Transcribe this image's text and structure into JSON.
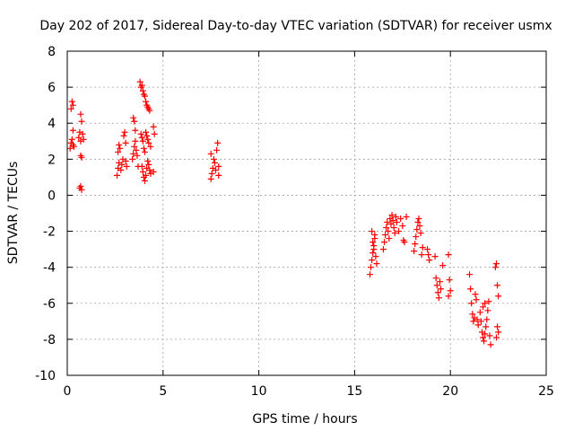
{
  "chart_data": {
    "type": "scatter",
    "title": "Day 202 of 2017, Sidereal Day-to-day VTEC variation (SDTVAR) for receiver usmx",
    "xlabel": "GPS time / hours",
    "ylabel": "SDTVAR / TECUs",
    "xlim": [
      0,
      25
    ],
    "ylim": [
      -10,
      8
    ],
    "x_ticks": [
      0,
      5,
      10,
      15,
      20,
      25
    ],
    "y_ticks": [
      -10,
      -8,
      -6,
      -4,
      -2,
      0,
      2,
      4,
      6,
      8
    ],
    "x_tick_labels": [
      "0",
      "5",
      "10",
      "15",
      "20",
      "25"
    ],
    "y_tick_labels": [
      "-10",
      "-8",
      "-6",
      "-4",
      "-2",
      "0",
      "2",
      "4",
      "6",
      "8"
    ],
    "grid": true,
    "marker": "+",
    "marker_color": "#ff0000",
    "series": [
      {
        "name": "SDTVAR",
        "points": [
          [
            0.15,
            2.6
          ],
          [
            0.2,
            2.9
          ],
          [
            0.25,
            3.1
          ],
          [
            0.3,
            2.8
          ],
          [
            0.25,
            5.2
          ],
          [
            0.3,
            5.0
          ],
          [
            0.2,
            4.8
          ],
          [
            0.3,
            3.6
          ],
          [
            0.35,
            2.7
          ],
          [
            0.6,
            3.2
          ],
          [
            0.65,
            3.5
          ],
          [
            0.7,
            3.0
          ],
          [
            0.75,
            4.1
          ],
          [
            0.7,
            4.5
          ],
          [
            0.8,
            3.4
          ],
          [
            0.85,
            3.1
          ],
          [
            0.7,
            2.2
          ],
          [
            0.75,
            2.1
          ],
          [
            0.65,
            0.4
          ],
          [
            0.7,
            0.5
          ],
          [
            0.75,
            0.3
          ],
          [
            2.6,
            1.1
          ],
          [
            2.65,
            1.5
          ],
          [
            2.7,
            1.8
          ],
          [
            2.65,
            2.4
          ],
          [
            2.7,
            2.8
          ],
          [
            2.75,
            2.6
          ],
          [
            2.8,
            1.4
          ],
          [
            2.85,
            1.7
          ],
          [
            2.9,
            2.0
          ],
          [
            2.95,
            3.3
          ],
          [
            3.0,
            3.5
          ],
          [
            3.05,
            2.9
          ],
          [
            3.1,
            1.6
          ],
          [
            3.05,
            1.9
          ],
          [
            3.4,
            2.0
          ],
          [
            3.45,
            2.3
          ],
          [
            3.5,
            2.7
          ],
          [
            3.55,
            3.0
          ],
          [
            3.45,
            4.3
          ],
          [
            3.5,
            4.1
          ],
          [
            3.55,
            3.6
          ],
          [
            3.6,
            2.5
          ],
          [
            3.65,
            2.2
          ],
          [
            3.7,
            1.6
          ],
          [
            3.8,
            6.3
          ],
          [
            3.85,
            6.0
          ],
          [
            3.9,
            6.1
          ],
          [
            3.95,
            5.8
          ],
          [
            4.0,
            5.6
          ],
          [
            4.05,
            5.5
          ],
          [
            4.1,
            5.2
          ],
          [
            4.15,
            5.0
          ],
          [
            4.2,
            4.9
          ],
          [
            4.25,
            4.8
          ],
          [
            4.3,
            4.7
          ],
          [
            3.85,
            3.4
          ],
          [
            3.9,
            3.2
          ],
          [
            3.95,
            3.0
          ],
          [
            4.0,
            2.6
          ],
          [
            4.05,
            2.4
          ],
          [
            4.1,
            3.5
          ],
          [
            4.15,
            3.3
          ],
          [
            4.2,
            3.1
          ],
          [
            4.25,
            2.9
          ],
          [
            4.35,
            2.7
          ],
          [
            4.5,
            3.8
          ],
          [
            4.55,
            3.4
          ],
          [
            3.9,
            1.6
          ],
          [
            3.95,
            1.3
          ],
          [
            4.0,
            1.0
          ],
          [
            4.05,
            0.8
          ],
          [
            4.1,
            1.1
          ],
          [
            4.15,
            1.5
          ],
          [
            4.2,
            1.9
          ],
          [
            4.25,
            1.7
          ],
          [
            4.3,
            1.4
          ],
          [
            4.35,
            1.2
          ],
          [
            4.5,
            1.3
          ],
          [
            7.5,
            0.9
          ],
          [
            7.55,
            1.2
          ],
          [
            7.6,
            1.5
          ],
          [
            7.65,
            2.0
          ],
          [
            7.5,
            2.3
          ],
          [
            7.7,
            1.8
          ],
          [
            7.75,
            1.4
          ],
          [
            7.8,
            2.5
          ],
          [
            7.85,
            2.9
          ],
          [
            7.9,
            1.1
          ],
          [
            7.9,
            1.6
          ],
          [
            15.8,
            -4.4
          ],
          [
            15.85,
            -4.0
          ],
          [
            15.9,
            -3.6
          ],
          [
            15.95,
            -3.2
          ],
          [
            16.0,
            -2.8
          ],
          [
            16.05,
            -2.4
          ],
          [
            15.9,
            -2.0
          ],
          [
            15.95,
            -2.6
          ],
          [
            16.0,
            -3.0
          ],
          [
            16.1,
            -3.4
          ],
          [
            16.15,
            -3.8
          ],
          [
            16.05,
            -2.2
          ],
          [
            16.5,
            -3.0
          ],
          [
            16.55,
            -2.6
          ],
          [
            16.6,
            -2.2
          ],
          [
            16.65,
            -1.8
          ],
          [
            16.7,
            -1.5
          ],
          [
            16.75,
            -2.0
          ],
          [
            16.8,
            -2.4
          ],
          [
            16.85,
            -1.3
          ],
          [
            16.9,
            -1.6
          ],
          [
            16.95,
            -1.1
          ],
          [
            17.0,
            -1.4
          ],
          [
            17.05,
            -1.8
          ],
          [
            17.1,
            -2.1
          ],
          [
            17.15,
            -1.2
          ],
          [
            17.2,
            -1.5
          ],
          [
            17.3,
            -2.0
          ],
          [
            17.4,
            -1.3
          ],
          [
            17.5,
            -1.7
          ],
          [
            17.55,
            -2.5
          ],
          [
            17.6,
            -2.6
          ],
          [
            17.7,
            -1.2
          ],
          [
            18.1,
            -3.1
          ],
          [
            18.15,
            -2.7
          ],
          [
            18.2,
            -2.3
          ],
          [
            18.25,
            -1.9
          ],
          [
            18.3,
            -1.5
          ],
          [
            18.35,
            -1.3
          ],
          [
            18.4,
            -1.7
          ],
          [
            18.45,
            -2.1
          ],
          [
            18.5,
            -3.3
          ],
          [
            18.55,
            -2.9
          ],
          [
            18.8,
            -3.0
          ],
          [
            18.85,
            -3.3
          ],
          [
            18.9,
            -3.6
          ],
          [
            19.2,
            -3.4
          ],
          [
            19.25,
            -4.6
          ],
          [
            19.3,
            -5.0
          ],
          [
            19.35,
            -5.4
          ],
          [
            19.4,
            -5.7
          ],
          [
            19.45,
            -4.8
          ],
          [
            19.5,
            -5.2
          ],
          [
            19.6,
            -3.9
          ],
          [
            19.9,
            -3.3
          ],
          [
            19.95,
            -4.7
          ],
          [
            20.0,
            -5.3
          ],
          [
            19.9,
            -5.6
          ],
          [
            21.0,
            -4.4
          ],
          [
            21.05,
            -5.2
          ],
          [
            21.1,
            -6.0
          ],
          [
            21.15,
            -6.6
          ],
          [
            21.2,
            -7.0
          ],
          [
            21.25,
            -6.8
          ],
          [
            21.3,
            -5.5
          ],
          [
            21.35,
            -5.8
          ],
          [
            21.4,
            -6.9
          ],
          [
            21.45,
            -7.2
          ],
          [
            21.55,
            -6.5
          ],
          [
            21.6,
            -7.0
          ],
          [
            21.65,
            -7.6
          ],
          [
            21.7,
            -7.9
          ],
          [
            21.75,
            -8.1
          ],
          [
            21.8,
            -7.7
          ],
          [
            21.85,
            -7.3
          ],
          [
            21.9,
            -6.9
          ],
          [
            21.95,
            -6.4
          ],
          [
            22.0,
            -5.9
          ],
          [
            22.05,
            -7.8
          ],
          [
            22.1,
            -8.3
          ],
          [
            21.7,
            -6.2
          ],
          [
            21.8,
            -6.0
          ],
          [
            22.35,
            -4.0
          ],
          [
            22.4,
            -3.8
          ],
          [
            22.45,
            -5.0
          ],
          [
            22.5,
            -5.6
          ],
          [
            22.45,
            -7.3
          ],
          [
            22.5,
            -7.6
          ],
          [
            22.4,
            -7.9
          ]
        ]
      }
    ]
  }
}
